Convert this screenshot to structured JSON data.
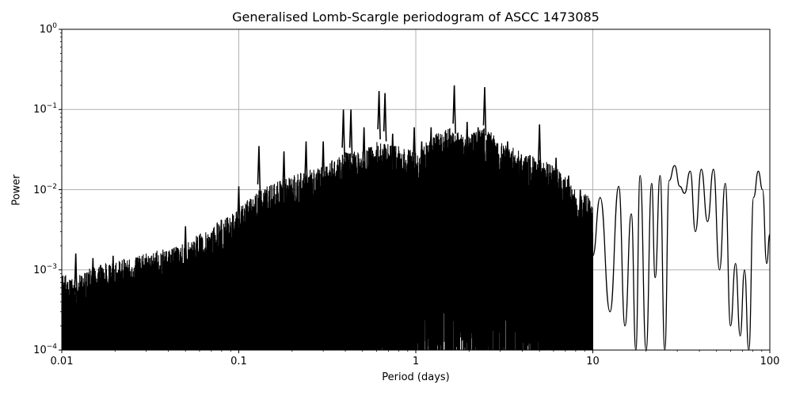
{
  "chart_data": {
    "type": "line",
    "title": "Generalised Lomb-Scargle periodogram of ASCC 1473085",
    "xlabel": "Period (days)",
    "ylabel": "Power",
    "xscale": "log",
    "yscale": "log",
    "xlim": [
      0.01,
      100
    ],
    "ylim": [
      0.0001,
      1
    ],
    "grid": true,
    "legend": null,
    "x_ticks": [
      {
        "value": 0.01,
        "label": "0.01"
      },
      {
        "value": 0.1,
        "label": "0.1"
      },
      {
        "value": 1,
        "label": "1"
      },
      {
        "value": 10,
        "label": "10"
      },
      {
        "value": 100,
        "label": "100"
      }
    ],
    "y_ticks": [
      {
        "value": 1,
        "base": "10",
        "exp": "0"
      },
      {
        "value": 0.1,
        "base": "10",
        "exp": "−1"
      },
      {
        "value": 0.01,
        "base": "10",
        "exp": "−2"
      },
      {
        "value": 0.001,
        "base": "10",
        "exp": "−3"
      },
      {
        "value": 0.0001,
        "base": "10",
        "exp": "−4"
      }
    ],
    "line_color": "#000000",
    "envelope_upper": {
      "period": [
        0.01,
        0.012,
        0.015,
        0.02,
        0.03,
        0.05,
        0.07,
        0.1,
        0.13,
        0.2,
        0.3,
        0.4,
        0.5,
        0.6,
        0.8,
        1.0,
        1.3,
        1.6,
        2.0,
        2.5,
        3.0,
        4.0,
        5.0,
        6.0,
        7.0,
        8.0,
        9.0,
        10.0
      ],
      "power": [
        0.0009,
        0.0008,
        0.0012,
        0.0013,
        0.0016,
        0.0022,
        0.0035,
        0.006,
        0.01,
        0.015,
        0.02,
        0.03,
        0.03,
        0.04,
        0.035,
        0.03,
        0.05,
        0.06,
        0.05,
        0.06,
        0.04,
        0.03,
        0.025,
        0.02,
        0.015,
        0.01,
        0.009,
        0.008
      ]
    },
    "envelope_lower": {
      "period": [
        0.01,
        0.1,
        0.2,
        0.3,
        0.5,
        1.0,
        2.0,
        5.0,
        10.0
      ],
      "power": [
        0.0001,
        0.0001,
        0.0002,
        0.0004,
        0.0008,
        0.001,
        0.0015,
        0.001,
        0.0008
      ]
    },
    "notable_peaks": [
      {
        "period": 0.012,
        "power": 0.0016
      },
      {
        "period": 0.015,
        "power": 0.0014
      },
      {
        "period": 0.0195,
        "power": 0.0015
      },
      {
        "period": 0.05,
        "power": 0.0035
      },
      {
        "period": 0.1,
        "power": 0.011
      },
      {
        "period": 0.13,
        "power": 0.035
      },
      {
        "period": 0.18,
        "power": 0.03
      },
      {
        "period": 0.24,
        "power": 0.04
      },
      {
        "period": 0.3,
        "power": 0.04
      },
      {
        "period": 0.39,
        "power": 0.1
      },
      {
        "period": 0.43,
        "power": 0.1
      },
      {
        "period": 0.51,
        "power": 0.06
      },
      {
        "period": 0.62,
        "power": 0.17
      },
      {
        "period": 0.67,
        "power": 0.16
      },
      {
        "period": 0.74,
        "power": 0.05
      },
      {
        "period": 0.98,
        "power": 0.06
      },
      {
        "period": 1.08,
        "power": 0.04
      },
      {
        "period": 1.22,
        "power": 0.06
      },
      {
        "period": 1.65,
        "power": 0.2
      },
      {
        "period": 1.95,
        "power": 0.07
      },
      {
        "period": 2.25,
        "power": 0.06
      },
      {
        "period": 2.45,
        "power": 0.19
      },
      {
        "period": 2.6,
        "power": 0.05
      },
      {
        "period": 3.3,
        "power": 0.04
      },
      {
        "period": 3.8,
        "power": 0.026
      },
      {
        "period": 5.0,
        "power": 0.065
      },
      {
        "period": 6.2,
        "power": 0.025
      },
      {
        "period": 7.3,
        "power": 0.015
      },
      {
        "period": 8.5,
        "power": 0.01
      }
    ],
    "smooth_region": {
      "period": [
        10.0,
        11.0,
        12.5,
        14.0,
        15.2,
        16.5,
        17.5,
        18.5,
        20.0,
        21.5,
        22.5,
        24.0,
        25.5,
        27.0,
        29.0,
        31.0,
        33.0,
        35.5,
        38.0,
        41.0,
        44.5,
        48.0,
        52.0,
        56.0,
        60.0,
        64.0,
        68.0,
        72.0,
        76.0,
        81.0,
        86.0,
        91.0,
        96.0,
        100.0
      ],
      "power": [
        0.0015,
        0.008,
        0.0003,
        0.011,
        0.0002,
        0.005,
        0.0001,
        0.015,
        0.0001,
        0.012,
        0.0008,
        0.015,
        0.0001,
        0.013,
        0.02,
        0.011,
        0.009,
        0.017,
        0.003,
        0.018,
        0.004,
        0.018,
        0.001,
        0.012,
        0.0002,
        0.0012,
        0.00015,
        0.001,
        0.0001,
        0.008,
        0.017,
        0.01,
        0.0012,
        0.0028
      ]
    }
  }
}
